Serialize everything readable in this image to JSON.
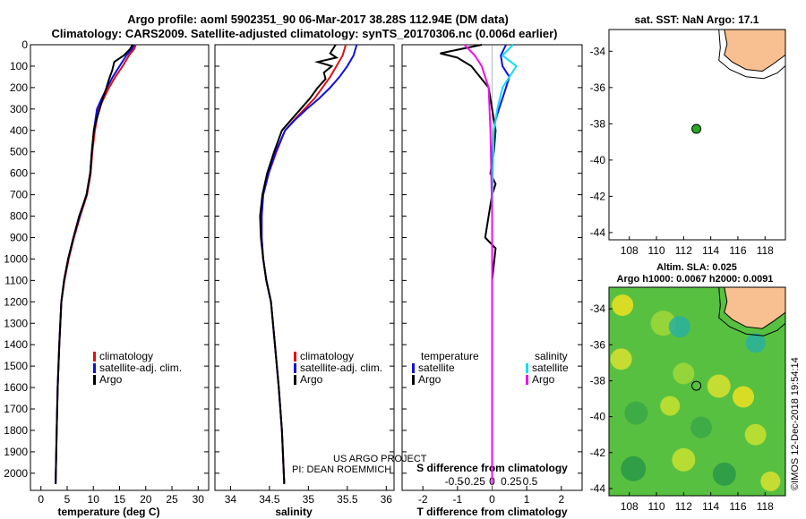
{
  "title": {
    "line1": "Argo profile: aoml 5902351_90 06-Mar-2017 38.28S 112.94E (DM data)",
    "line2": "Climatology: CARS2009. Satellite-adjusted climatology: synTS_20170306.nc (0.006d earlier)"
  },
  "colors": {
    "climatology": "#e01010",
    "satellite": "#1010e0",
    "argo": "#000000",
    "sat_diff_s": "#10e0f0",
    "argo_diff_s": "#f010f0",
    "land": "#f8c090",
    "sst_marker": "#22aa22"
  },
  "credits": {
    "project": "US ARGO PROJECT",
    "pi": "PI: DEAN ROEMMICH",
    "imos": "©IMOS 12-Dec-2018 19:54:14"
  },
  "legends": {
    "temp": [
      "climatology",
      "satellite-adj. clim.",
      "Argo"
    ],
    "sal": [
      "climatology",
      "satellite-adj. clim.",
      "Argo"
    ],
    "diff_heading_t": "temperature",
    "diff_heading_s": "salinity",
    "diff_t": [
      "satellite",
      "Argo"
    ],
    "diff_s": [
      "satellite",
      "Argo"
    ]
  },
  "maps": {
    "sst_title": "sat. SST: NaN Argo: 17.1",
    "sla_title": "Altim. SLA: 0.025",
    "sla_subtitle": "Argo h1000: 0.0067 h2000: 0.0091",
    "xticks": [
      "108",
      "110",
      "112",
      "114",
      "116",
      "118"
    ],
    "yticks": [
      "-34",
      "-36",
      "-38",
      "-40",
      "-42",
      "-44"
    ]
  },
  "chart_data": [
    {
      "id": "temperature",
      "type": "line",
      "xlabel": "temperature (deg C)",
      "ylabel": "pressure",
      "xlim": [
        -2,
        32
      ],
      "ylim": [
        2080,
        0
      ],
      "xticks": [
        "0",
        "5",
        "10",
        "15",
        "20",
        "25",
        "30"
      ],
      "yticks": [
        "0",
        "100",
        "200",
        "300",
        "400",
        "500",
        "600",
        "700",
        "800",
        "900",
        "1000",
        "1100",
        "1200",
        "1300",
        "1400",
        "1500",
        "1600",
        "1700",
        "1800",
        "1900",
        "2000"
      ],
      "series": [
        {
          "name": "climatology",
          "color": "#e01010",
          "x": [
            18.1,
            17.8,
            16.8,
            15.6,
            14.2,
            13.0,
            12.0,
            11.0,
            10.3,
            9.8,
            9.5,
            8.8,
            7.5,
            6.3,
            5.3,
            4.5,
            3.9,
            3.5,
            3.2,
            3.0,
            2.8
          ],
          "y": [
            0,
            20,
            50,
            100,
            150,
            200,
            250,
            300,
            400,
            500,
            600,
            700,
            800,
            900,
            1000,
            1100,
            1200,
            1400,
            1600,
            1800,
            2050
          ]
        },
        {
          "name": "satellite-adj. clim.",
          "color": "#1010e0",
          "x": [
            17.8,
            17.4,
            16.3,
            15.0,
            13.7,
            12.6,
            11.6,
            10.7,
            10.1,
            9.7,
            9.4,
            8.7,
            7.4,
            6.2,
            5.2,
            4.4,
            3.9,
            3.5,
            3.2,
            3.0,
            2.8
          ],
          "y": [
            0,
            20,
            50,
            100,
            150,
            200,
            250,
            300,
            400,
            500,
            600,
            700,
            800,
            900,
            1000,
            1100,
            1200,
            1400,
            1600,
            1800,
            2050
          ]
        },
        {
          "name": "Argo",
          "color": "#000000",
          "x": [
            17.5,
            17.0,
            15.8,
            14.0,
            13.6,
            13.0,
            12.5,
            11.8,
            11.2,
            10.6,
            10.1,
            9.7,
            9.4,
            8.7,
            7.3,
            6.2,
            5.2,
            4.4,
            3.9,
            3.5,
            3.2,
            3.0,
            2.8
          ],
          "y": [
            0,
            20,
            50,
            80,
            120,
            160,
            200,
            250,
            300,
            350,
            400,
            500,
            600,
            700,
            800,
            900,
            1000,
            1100,
            1200,
            1400,
            1600,
            1800,
            2050
          ]
        }
      ]
    },
    {
      "id": "salinity",
      "type": "line",
      "xlabel": "salinity",
      "xlim": [
        33.8,
        36.1
      ],
      "ylim": [
        2080,
        0
      ],
      "xticks": [
        "34",
        "34.5",
        "35",
        "35.5",
        "36"
      ],
      "series": [
        {
          "name": "climatology",
          "color": "#e01010",
          "x": [
            35.48,
            35.44,
            35.36,
            35.28,
            35.18,
            35.08,
            34.95,
            34.82,
            34.7,
            34.59,
            34.49,
            34.42,
            34.4,
            34.4,
            34.42,
            34.46,
            34.52,
            34.57,
            34.62,
            34.66,
            34.69
          ],
          "y": [
            0,
            50,
            100,
            150,
            200,
            250,
            300,
            350,
            400,
            500,
            600,
            700,
            800,
            900,
            1000,
            1100,
            1200,
            1400,
            1600,
            1800,
            2050
          ]
        },
        {
          "name": "satellite-adj. clim.",
          "color": "#1010e0",
          "x": [
            35.62,
            35.58,
            35.5,
            35.4,
            35.28,
            35.14,
            34.98,
            34.83,
            34.7,
            34.58,
            34.49,
            34.42,
            34.4,
            34.4,
            34.42,
            34.46,
            34.52,
            34.57,
            34.62,
            34.66,
            34.69
          ],
          "y": [
            0,
            50,
            100,
            150,
            200,
            250,
            300,
            350,
            400,
            500,
            600,
            700,
            800,
            900,
            1000,
            1100,
            1200,
            1400,
            1600,
            1800,
            2050
          ]
        },
        {
          "name": "Argo",
          "color": "#000000",
          "x": [
            35.35,
            35.28,
            35.36,
            35.12,
            35.3,
            35.2,
            35.22,
            35.12,
            35.02,
            34.9,
            34.78,
            34.66,
            34.56,
            34.47,
            34.41,
            34.38,
            34.39,
            34.42,
            34.46,
            34.52,
            34.57,
            34.62,
            34.66,
            34.69
          ],
          "y": [
            0,
            40,
            60,
            80,
            100,
            130,
            160,
            200,
            250,
            300,
            350,
            400,
            500,
            600,
            700,
            800,
            900,
            1000,
            1100,
            1200,
            1400,
            1600,
            1800,
            2050
          ]
        }
      ]
    },
    {
      "id": "difference",
      "type": "line",
      "xlabel": "T difference from climatology",
      "xlabel_top": "S difference from climatology",
      "xlim": [
        -2.6,
        2.6
      ],
      "ylim": [
        2080,
        0
      ],
      "xticks": [
        "-2",
        "-1",
        "0",
        "1",
        "2"
      ],
      "xticks_top": [
        "-0.5",
        "-0.25",
        "0",
        "0.25",
        "0.5"
      ],
      "series": [
        {
          "name": "satellite T",
          "color": "#1010e0",
          "x": [
            0.4,
            0.25,
            0.3,
            0.5,
            0.4,
            0.3,
            0.2,
            0.1,
            0.05,
            0.02,
            0.0,
            0.0,
            0.0,
            0.0,
            0.0,
            0.0
          ],
          "y": [
            0,
            50,
            100,
            150,
            200,
            250,
            300,
            350,
            400,
            500,
            600,
            700,
            800,
            1000,
            1500,
            2050
          ]
        },
        {
          "name": "Argo T",
          "color": "#000000",
          "x": [
            -0.3,
            -1.5,
            -1.0,
            -0.6,
            -0.1,
            0.0,
            0.1,
            0.05,
            0.0,
            -0.05,
            0.1,
            0.0,
            -0.1,
            -0.2,
            0.1,
            0.0,
            0.0
          ],
          "y": [
            0,
            40,
            60,
            100,
            200,
            300,
            400,
            500,
            550,
            600,
            650,
            700,
            800,
            900,
            950,
            1100,
            2050
          ]
        },
        {
          "name": "satellite S",
          "color": "#10e0f0",
          "x": [
            0.6,
            0.3,
            0.7,
            0.5,
            0.3,
            0.15,
            0.05,
            0.02,
            0.0,
            0.0
          ],
          "y": [
            0,
            50,
            100,
            150,
            200,
            300,
            400,
            600,
            800,
            2050
          ]
        },
        {
          "name": "Argo S",
          "color": "#f010f0",
          "x": [
            -0.8,
            -0.5,
            -0.3,
            -0.1,
            -0.05,
            0.0,
            0.0
          ],
          "y": [
            0,
            50,
            100,
            200,
            400,
            800,
            2050
          ]
        }
      ]
    }
  ]
}
